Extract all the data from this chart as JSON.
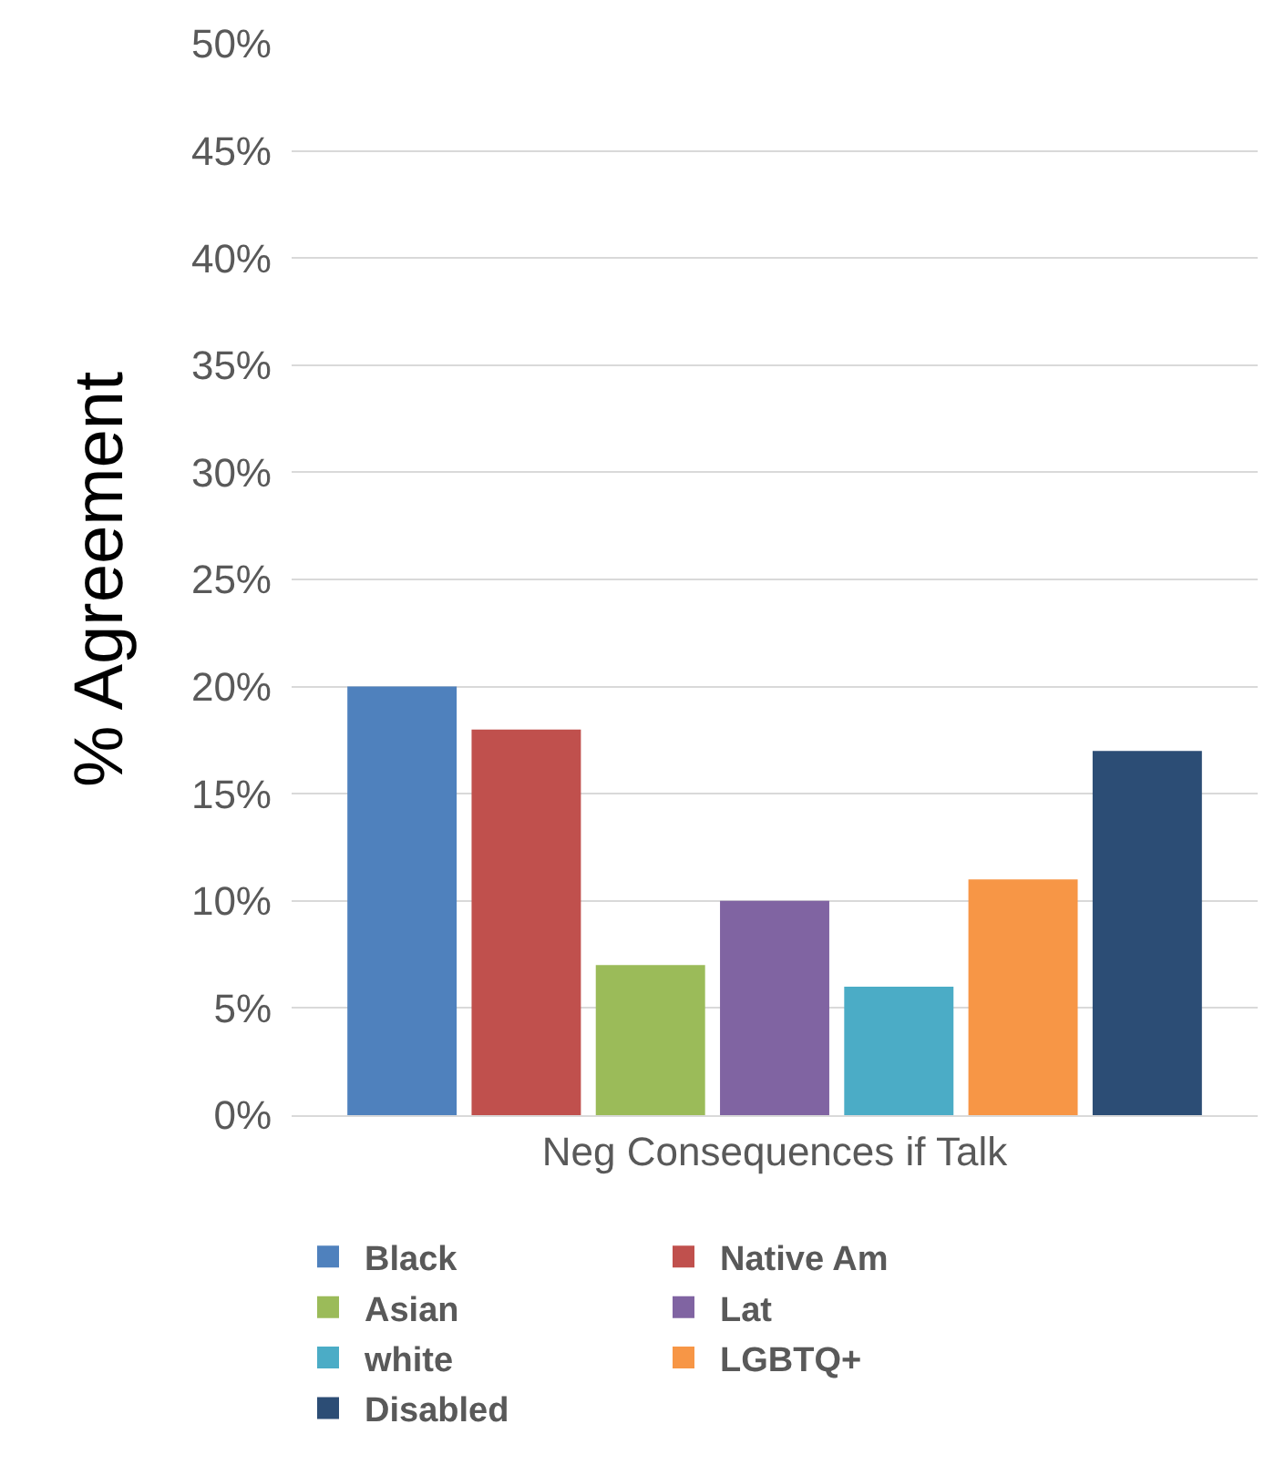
{
  "chart_data": {
    "type": "bar",
    "ylabel": "% Agreement",
    "categories": [
      "Neg Consequences if Talk"
    ],
    "series": [
      {
        "name": "Black",
        "color": "#4f81bd",
        "values": [
          20
        ]
      },
      {
        "name": "Native Am",
        "color": "#c0504d",
        "values": [
          18
        ]
      },
      {
        "name": "Asian",
        "color": "#9bbb59",
        "values": [
          7
        ]
      },
      {
        "name": "Lat",
        "color": "#8064a2",
        "values": [
          10
        ]
      },
      {
        "name": "white",
        "color": "#4bacc6",
        "values": [
          6
        ]
      },
      {
        "name": "LGBTQ+",
        "color": "#f79646",
        "values": [
          11
        ]
      },
      {
        "name": "Disabled",
        "color": "#2c4d75",
        "values": [
          17
        ]
      }
    ],
    "ylim": [
      0,
      50
    ],
    "yticks": [
      {
        "value": 0,
        "label": "0%"
      },
      {
        "value": 5,
        "label": "5%"
      },
      {
        "value": 10,
        "label": "10%"
      },
      {
        "value": 15,
        "label": "15%"
      },
      {
        "value": 20,
        "label": "20%"
      },
      {
        "value": 25,
        "label": "25%"
      },
      {
        "value": 30,
        "label": "30%"
      },
      {
        "value": 35,
        "label": "35%"
      },
      {
        "value": 40,
        "label": "40%"
      },
      {
        "value": 45,
        "label": "45%"
      },
      {
        "value": 50,
        "label": "50%"
      }
    ],
    "grid": "y",
    "legend": "bottom"
  }
}
